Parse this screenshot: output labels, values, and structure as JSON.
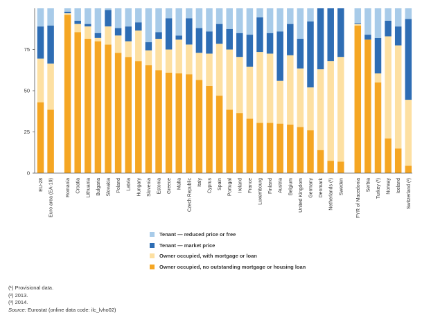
{
  "chart_data": {
    "type": "bar",
    "stacked": true,
    "ylim": [
      0,
      100
    ],
    "yticks": [
      0,
      25,
      50,
      75
    ],
    "grid": false,
    "categories": [
      "EU-28",
      "Euro area (EA-19)",
      "Romania",
      "Croatia",
      "Lithuania",
      "Bulgaria",
      "Slovakia",
      "Poland",
      "Latvia",
      "Hungary",
      "Slovenia",
      "Estonia",
      "Greece",
      "Malta",
      "Czech Republic",
      "Italy",
      "Cyprus",
      "Spain",
      "Portugal",
      "Ireland",
      "France",
      "Luxembourg",
      "Finland",
      "Austria",
      "Belgium",
      "United Kingdom",
      "Germany",
      "Denmark",
      "Netherlands (¹)",
      "Sweden",
      "FYR of Macedonia",
      "Serbia",
      "Turkey (¹)",
      "Norway",
      "Iceland",
      "Switzerland (²)"
    ],
    "groups": [
      2,
      28,
      6
    ],
    "series": [
      {
        "name": "Owner occupied, no outstanding mortgage or housing loan",
        "color": "#f5a623",
        "values": [
          43,
          38.5,
          96,
          85.5,
          81.5,
          80,
          78,
          73,
          70.5,
          68,
          65.5,
          62.5,
          61,
          60.5,
          60,
          56.5,
          53,
          47,
          38.5,
          36.5,
          33,
          30.5,
          30.5,
          30,
          29.5,
          28,
          26,
          14,
          7.5,
          7,
          89.5,
          81,
          55,
          21,
          15,
          4.5
        ]
      },
      {
        "name": "Owner occupied, with mortgage or loan",
        "color": "#fde0a2",
        "values": [
          26.5,
          28,
          1,
          5,
          7.5,
          2,
          11,
          10.5,
          9.5,
          18.5,
          9,
          19,
          14,
          20.5,
          18,
          16.5,
          19.5,
          31.5,
          36.5,
          34,
          31.5,
          43,
          42,
          26,
          42,
          35.5,
          26,
          49,
          60.5,
          63.5,
          1,
          0,
          5.5,
          62,
          62.5,
          40
        ]
      },
      {
        "name": "Tenant — market price",
        "color": "#2e6db4",
        "values": [
          19.5,
          23,
          1,
          2,
          1.5,
          3,
          10,
          4.5,
          9,
          5,
          5,
          4,
          19,
          2.5,
          16,
          15,
          13.5,
          12,
          12.5,
          14.5,
          19.5,
          21,
          12.5,
          30,
          19,
          18,
          40,
          37,
          32,
          29.5,
          0.5,
          3,
          21.5,
          9.5,
          11.5,
          49
        ]
      },
      {
        "name": "Tenant — reduced price or free",
        "color": "#a8cbe9",
        "values": [
          11,
          10.5,
          2,
          7.5,
          9.5,
          15,
          1,
          12,
          11,
          8.5,
          20.5,
          14.5,
          6,
          16.5,
          6,
          12,
          14,
          9.5,
          12.5,
          15,
          16,
          5.5,
          15,
          14,
          9.5,
          18.5,
          8,
          0,
          0,
          0,
          9,
          16,
          18,
          7.5,
          11,
          6.5
        ]
      }
    ]
  },
  "legend_items": [
    {
      "label": "Tenant — reduced price or free",
      "color": "#a8cbe9"
    },
    {
      "label": "Tenant — market price",
      "color": "#2e6db4"
    },
    {
      "label": "Owner occupied, with mortgage or loan",
      "color": "#fde0a2"
    },
    {
      "label": "Owner occupied, no outstanding mortgage or housing loan",
      "color": "#f5a623"
    }
  ],
  "notes": {
    "note1": "(¹) Provisional data.",
    "note2": "(²) 2013.",
    "note3": "(³) 2014.",
    "source_label": "Source:",
    "source_text": " Eurostat (online data code: ilc_lvho02)"
  }
}
